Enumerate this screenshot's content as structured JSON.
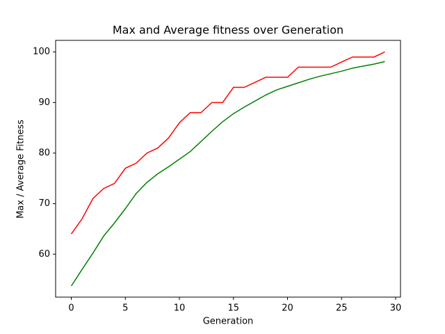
{
  "chart_data": {
    "type": "line",
    "title": "Max and Average fitness over Generation",
    "x_label": "Generation",
    "y_label": "Max / Average Fitness",
    "x": [
      0,
      1,
      2,
      3,
      4,
      5,
      6,
      7,
      8,
      9,
      10,
      11,
      12,
      13,
      14,
      15,
      16,
      17,
      18,
      19,
      20,
      21,
      22,
      23,
      24,
      25,
      26,
      27,
      28,
      29
    ],
    "series": [
      {
        "color": "#ff0000",
        "values": [
          64,
          67,
          71,
          73,
          74,
          77,
          78,
          80,
          81,
          83,
          86,
          88,
          88,
          90,
          90,
          93,
          93,
          94,
          95,
          95,
          95,
          97,
          97,
          97,
          97,
          98,
          99,
          99,
          99,
          100
        ]
      },
      {
        "color": "#008000",
        "values": [
          53.7,
          57,
          60.2,
          63.6,
          66.2,
          69,
          72,
          74.2,
          75.9,
          77.3,
          78.8,
          80.3,
          82.3,
          84.3,
          86.2,
          87.8,
          89.1,
          90.3,
          91.5,
          92.5,
          93.2,
          93.9,
          94.6,
          95.2,
          95.7,
          96.2,
          96.8,
          97.2,
          97.6,
          98.1
        ]
      }
    ],
    "xlim": [
      -1.45,
      30.45
    ],
    "ylim": [
      51.5,
      102.3
    ],
    "xticks": [
      0,
      5,
      10,
      15,
      20,
      25,
      30
    ],
    "yticks": [
      60,
      70,
      80,
      90,
      100
    ],
    "grid": false
  }
}
